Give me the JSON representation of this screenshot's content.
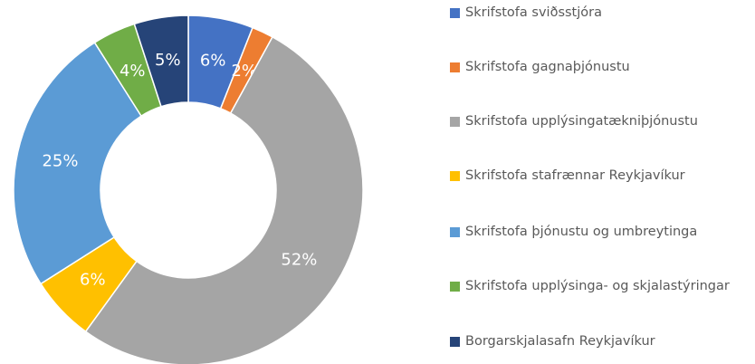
{
  "chart_data": {
    "type": "donut",
    "categories": [
      "Skrifstofa sviðsstjóra",
      "Skrifstofa gagnaþjónustu",
      "Skrifstofa upplýsingatækniþjónustu",
      "Skrifstofa stafrænnar Reykjavíkur",
      "Skrifstofa þjónustu og umbreytinga",
      "Skrifstofa upplýsinga- og skjalastýringar",
      "Borgarskjalasafn Reykjavíkur"
    ],
    "values": [
      6,
      2,
      52,
      6,
      25,
      4,
      5
    ],
    "value_labels": [
      "6%",
      "2%",
      "52%",
      "6%",
      "25%",
      "4%",
      "5%"
    ],
    "colors": [
      "#4472c4",
      "#ed7d31",
      "#a5a5a5",
      "#ffc000",
      "#5b9bd5",
      "#70ad47",
      "#264478"
    ],
    "legend": "right"
  }
}
